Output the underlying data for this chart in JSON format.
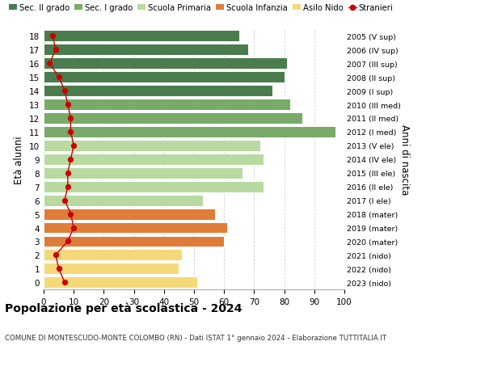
{
  "ages": [
    18,
    17,
    16,
    15,
    14,
    13,
    12,
    11,
    10,
    9,
    8,
    7,
    6,
    5,
    4,
    3,
    2,
    1,
    0
  ],
  "years": [
    "2005 (V sup)",
    "2006 (IV sup)",
    "2007 (III sup)",
    "2008 (II sup)",
    "2009 (I sup)",
    "2010 (III med)",
    "2011 (II med)",
    "2012 (I med)",
    "2013 (V ele)",
    "2014 (IV ele)",
    "2015 (III ele)",
    "2016 (II ele)",
    "2017 (I ele)",
    "2018 (mater)",
    "2019 (mater)",
    "2020 (mater)",
    "2021 (nido)",
    "2022 (nido)",
    "2023 (nido)"
  ],
  "bar_values": [
    65,
    68,
    81,
    80,
    76,
    82,
    86,
    97,
    72,
    73,
    66,
    73,
    53,
    57,
    61,
    60,
    46,
    45,
    51
  ],
  "bar_colors": [
    "#4a7c4e",
    "#4a7c4e",
    "#4a7c4e",
    "#4a7c4e",
    "#4a7c4e",
    "#7aaa6a",
    "#7aaa6a",
    "#7aaa6a",
    "#b8d9a0",
    "#b8d9a0",
    "#b8d9a0",
    "#b8d9a0",
    "#b8d9a0",
    "#e07c3a",
    "#e07c3a",
    "#e07c3a",
    "#f5d87a",
    "#f5d87a",
    "#f5d87a"
  ],
  "stranieri_values": [
    3,
    4,
    2,
    5,
    7,
    8,
    9,
    9,
    10,
    9,
    8,
    8,
    7,
    9,
    10,
    8,
    4,
    5,
    7
  ],
  "legend_labels": [
    "Sec. II grado",
    "Sec. I grado",
    "Scuola Primaria",
    "Scuola Infanzia",
    "Asilo Nido",
    "Stranieri"
  ],
  "legend_colors": [
    "#4a7c4e",
    "#7aaa6a",
    "#b8d9a0",
    "#e07c3a",
    "#f5d87a",
    "#cc0000"
  ],
  "ylabel": "Età alunni",
  "ylabel_right": "Anni di nascita",
  "title": "Popolazione per età scolastica - 2024",
  "subtitle": "COMUNE DI MONTESCUDO-MONTE COLOMBO (RN) - Dati ISTAT 1° gennaio 2024 - Elaborazione TUTTITALIA.IT",
  "xlim": [
    0,
    100
  ],
  "bg_color": "#ffffff",
  "grid_color": "#cccccc"
}
